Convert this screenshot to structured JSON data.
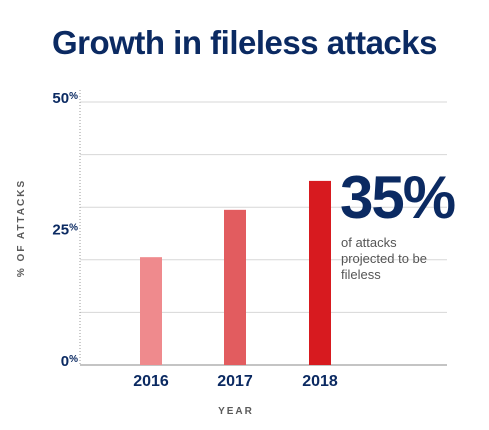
{
  "chart_data": {
    "type": "bar",
    "title": "Growth in fileless attacks",
    "xlabel": "YEAR",
    "ylabel": "% OF ATTACKS",
    "categories": [
      "2016",
      "2017",
      "2018"
    ],
    "values": [
      20.5,
      29.5,
      35
    ],
    "ylim": [
      0,
      50
    ],
    "yticks": [
      {
        "value": 0,
        "label": "0%"
      },
      {
        "value": 25,
        "label": "25%"
      },
      {
        "value": 50,
        "label": "50%"
      }
    ],
    "grid": true,
    "bar_colors": [
      "#ef8a8d",
      "#e25c5f",
      "#d71a1f"
    ],
    "annotation": {
      "value": "35%",
      "text": "of attacks projected to be fileless"
    }
  }
}
